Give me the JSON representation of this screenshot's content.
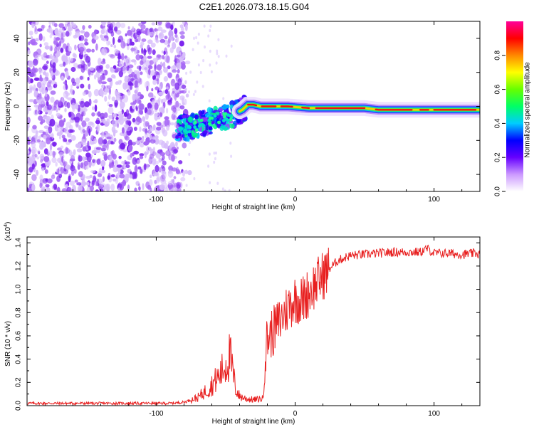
{
  "title": "C2E1.2026.073.18.15.G04",
  "chart_data": [
    {
      "type": "heatmap",
      "xlabel": "Height of straight line (km)",
      "ylabel": "Frequency (Hz)",
      "xlim": [
        -193,
        133
      ],
      "ylim": [
        -50,
        50
      ],
      "xticks": [
        -100,
        0,
        100
      ],
      "xtick_labels": [
        "-100",
        "0",
        "100"
      ],
      "yticks": [
        -40,
        -20,
        0,
        20,
        40
      ],
      "ytick_labels": [
        "-40",
        "-20",
        "0",
        "20",
        "40"
      ],
      "colorbar": {
        "label": "Normalized spectral amplitude",
        "range": [
          0,
          1
        ],
        "ticks": [
          0.0,
          0.2,
          0.4,
          0.6,
          0.8
        ],
        "tick_labels": [
          "0.0",
          "0.2",
          "0.4",
          "0.6",
          "0.8"
        ],
        "colormap": [
          "#ffffff",
          "#cc99ff",
          "#6600ff",
          "#0000ff",
          "#00ccff",
          "#00ff66",
          "#66ff00",
          "#ffff00",
          "#ff8800",
          "#ff0000",
          "#ff0099"
        ]
      },
      "regions": [
        {
          "name": "noise",
          "x": [
            -193,
            -80
          ],
          "y": [
            -50,
            50
          ]
        },
        {
          "name": "transition",
          "x": [
            -85,
            -35
          ],
          "y": [
            -25,
            0
          ]
        },
        {
          "name": "signal",
          "x": [
            -35,
            133
          ],
          "y": [
            -5,
            2
          ]
        }
      ],
      "signal_track": {
        "x": [
          -85,
          -75,
          -65,
          -55,
          -45,
          -38,
          -34,
          -30,
          -25,
          -15,
          -5,
          10,
          30,
          50,
          60,
          80,
          100,
          120,
          133
        ],
        "y": [
          -13,
          -12,
          -10,
          -7,
          -5,
          -2,
          1,
          1,
          0,
          0,
          0,
          -1,
          -1,
          -1,
          -2,
          -2,
          -2,
          -2,
          -2
        ]
      }
    },
    {
      "type": "line",
      "xlabel": "Height of straight line (km)",
      "ylabel": "SNR (10 * v/v)",
      "y_multiplier": "(x10",
      "y_multiplier_exp": "4",
      "y_multiplier_close": ")",
      "xlim": [
        -193,
        133
      ],
      "ylim": [
        0,
        1.45
      ],
      "xticks": [
        -100,
        0,
        100
      ],
      "xtick_labels": [
        "-100",
        "0",
        "100"
      ],
      "yticks": [
        0.0,
        0.2,
        0.4,
        0.6,
        0.8,
        1.0,
        1.2,
        1.4
      ],
      "ytick_labels": [
        "0.0",
        "0.2",
        "0.4",
        "0.6",
        "0.8",
        "1.0",
        "1.2",
        "1.4"
      ],
      "color": "#e82020",
      "series": [
        {
          "name": "SNR",
          "x": [
            -193,
            -170,
            -150,
            -130,
            -110,
            -90,
            -80,
            -70,
            -62,
            -55,
            -50,
            -47,
            -45,
            -43,
            -40,
            -35,
            -30,
            -23,
            -22,
            -20,
            -15,
            -10,
            -5,
            0,
            5,
            10,
            15,
            20,
            25,
            30,
            35,
            40,
            50,
            60,
            70,
            80,
            90,
            95,
            100,
            110,
            120,
            130,
            133
          ],
          "y": [
            0.02,
            0.02,
            0.02,
            0.02,
            0.02,
            0.02,
            0.03,
            0.07,
            0.15,
            0.25,
            0.35,
            0.43,
            0.3,
            0.15,
            0.08,
            0.06,
            0.05,
            0.06,
            0.4,
            0.58,
            0.65,
            0.75,
            0.85,
            0.92,
            0.9,
            0.98,
            1.05,
            1.12,
            1.18,
            1.24,
            1.27,
            1.29,
            1.3,
            1.31,
            1.32,
            1.32,
            1.32,
            1.35,
            1.31,
            1.31,
            1.3,
            1.31,
            1.3
          ]
        }
      ]
    }
  ]
}
